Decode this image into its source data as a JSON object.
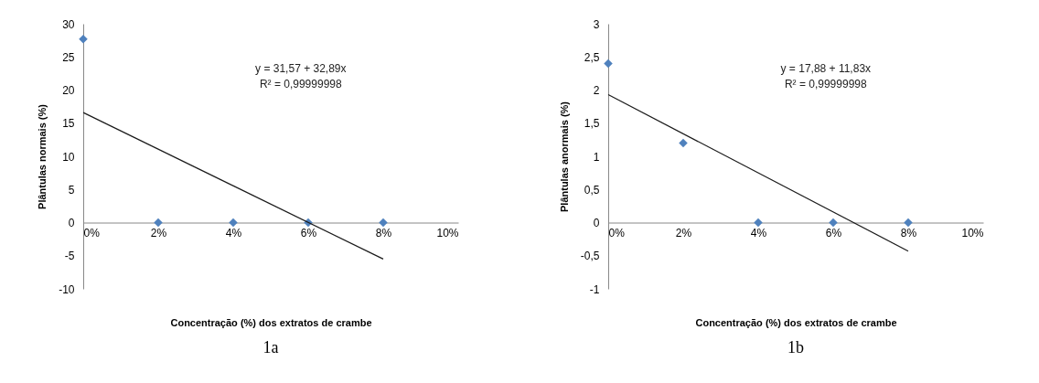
{
  "chart_data": [
    {
      "type": "scatter",
      "xlabel": "Concentração (%) dos extratos de crambe",
      "ylabel": "Plântulas normais (%)",
      "annotations": [
        "y = 31,57 + 32,89x",
        "R² = 0,99999998",
        "1a"
      ],
      "series": [
        {
          "color": "#4f81bd",
          "marker": "diamond",
          "x": [
            0,
            2,
            4,
            6,
            8
          ],
          "values": [
            27.7,
            0,
            0,
            0,
            0
          ]
        },
        {
          "type": "line",
          "color": "#1a1a1a",
          "marker": "none",
          "line_style": "solid",
          "x": [
            0,
            8
          ],
          "values": [
            16.6,
            -5.5
          ]
        }
      ],
      "xlim": [
        0,
        10
      ],
      "xticks": [
        {
          "value": 0,
          "label": "0%"
        },
        {
          "value": 2,
          "label": "2%"
        },
        {
          "value": 4,
          "label": "4%"
        },
        {
          "value": 6,
          "label": "6%"
        },
        {
          "value": 8,
          "label": "8%"
        },
        {
          "value": 10,
          "label": "10%"
        }
      ],
      "ylim": [
        -10,
        30
      ],
      "yticks": [
        -10,
        -5,
        0,
        5,
        10,
        15,
        20,
        25,
        30
      ],
      "grid": false
    },
    {
      "type": "scatter",
      "xlabel": "Concentração (%) dos extratos de crambe",
      "ylabel": "Plântulas anormais (%)",
      "annotations": [
        "y = 17,88 + 11,83x",
        "R² = 0,99999998",
        "1b"
      ],
      "series": [
        {
          "color": "#4f81bd",
          "marker": "diamond",
          "x": [
            0,
            2,
            4,
            6,
            8
          ],
          "values": [
            2.4,
            1.2,
            0,
            0,
            0
          ]
        },
        {
          "type": "line",
          "color": "#1a1a1a",
          "marker": "none",
          "line_style": "solid",
          "x": [
            0,
            8
          ],
          "values": [
            1.93,
            -0.43
          ]
        }
      ],
      "xlim": [
        0,
        10
      ],
      "xticks": [
        {
          "value": 0,
          "label": "0%"
        },
        {
          "value": 2,
          "label": "2%"
        },
        {
          "value": 4,
          "label": "4%"
        },
        {
          "value": 6,
          "label": "6%"
        },
        {
          "value": 8,
          "label": "8%"
        },
        {
          "value": 10,
          "label": "10%"
        }
      ],
      "ylim": [
        -1,
        3
      ],
      "yticks": [
        -1,
        {
          "value": -0.5,
          "label": "-0,5"
        },
        0,
        {
          "value": 0.5,
          "label": "0,5"
        },
        1,
        {
          "value": 1.5,
          "label": "1,5"
        },
        2,
        {
          "value": 2.5,
          "label": "2,5"
        },
        3
      ],
      "grid": false
    }
  ]
}
